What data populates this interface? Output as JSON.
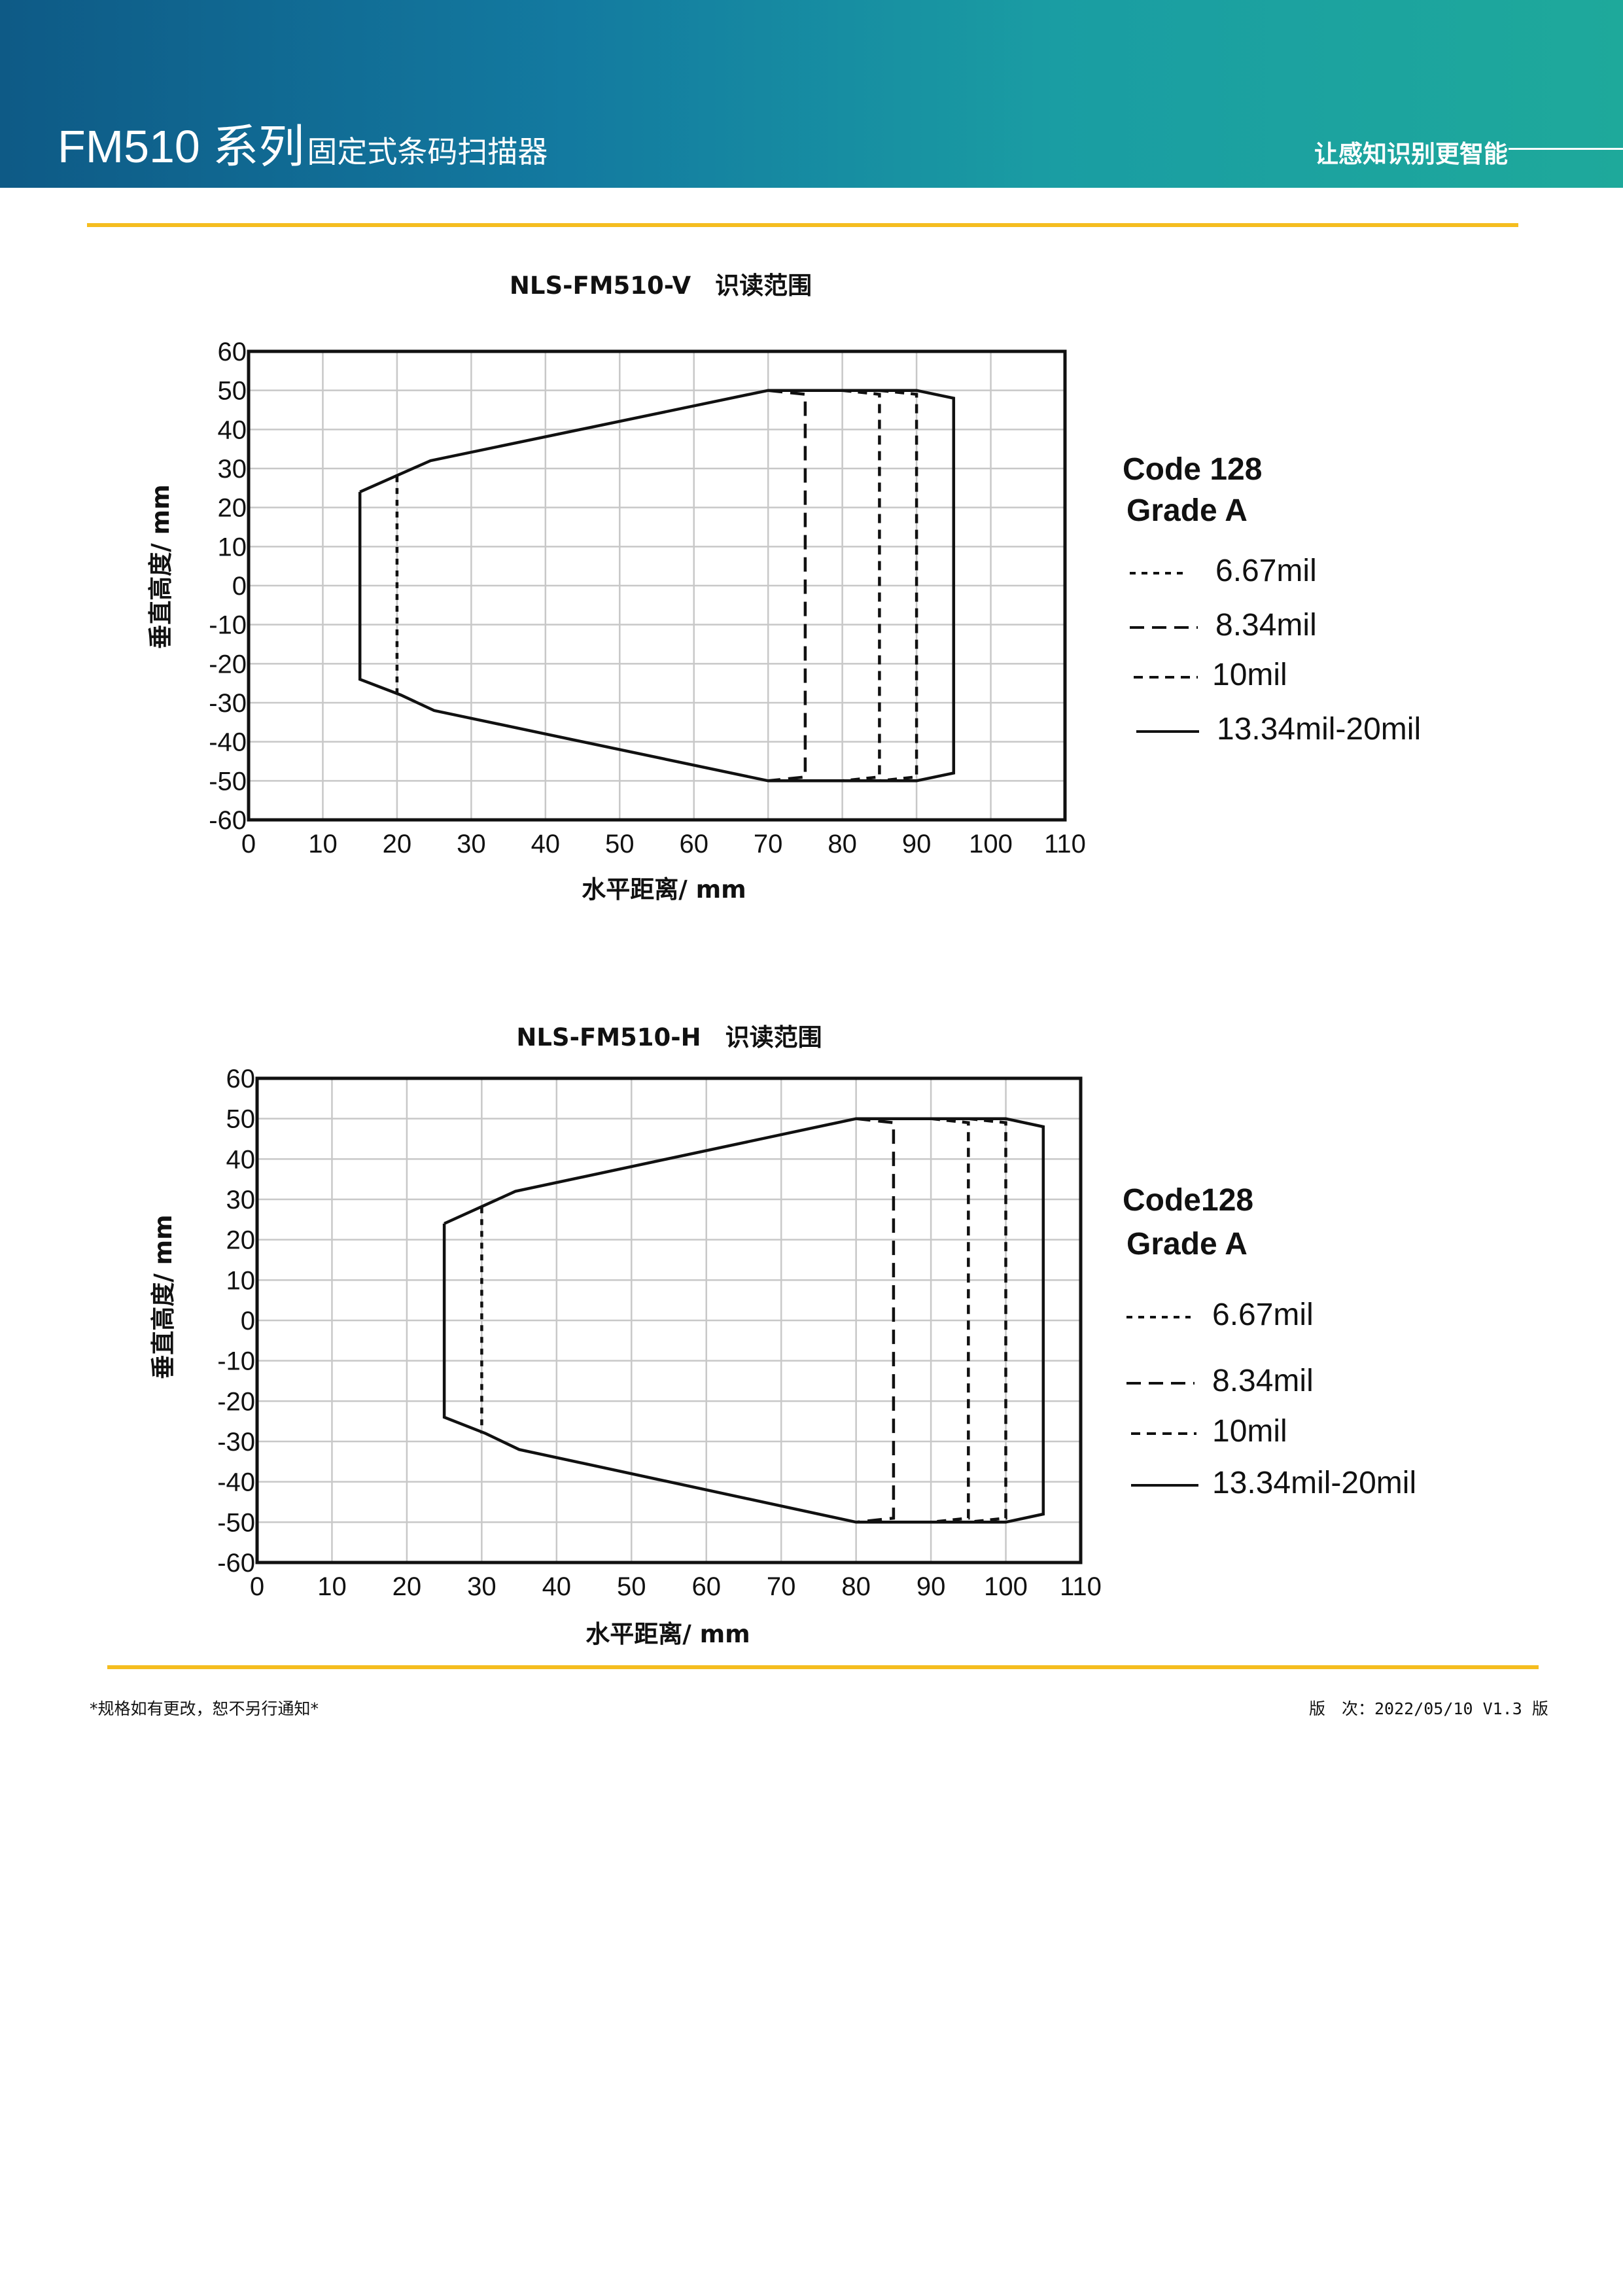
{
  "header": {
    "model": "FM510 系列",
    "product": "固定式条码扫描器",
    "slogan": "让感知识别更智能"
  },
  "footer": {
    "note": "*规格如有更改，恕不另行通知*",
    "version": "版　次：2022/05/10 V1.3 版"
  },
  "colors": {
    "header_start": "#0e5a86",
    "header_end": "#1ea99b",
    "rule": "#f5bd1f",
    "grid": "#c8c8c8",
    "line": "#111111"
  },
  "chart_data": [
    {
      "type": "line",
      "title": "NLS-FM510-V　识读范围",
      "xlabel": "水平距离/ mm",
      "ylabel": "垂直高度/ mm",
      "xlim": [
        0,
        110
      ],
      "ylim": [
        -60,
        60
      ],
      "xticks": [
        "0",
        "10",
        "20",
        "30",
        "40",
        "50",
        "60",
        "70",
        "80",
        "90",
        "100",
        "110"
      ],
      "yticks": [
        "60",
        "50",
        "40",
        "30",
        "20",
        "10",
        "0",
        "-10",
        "-20",
        "-30",
        "-40",
        "-50",
        "-60"
      ],
      "grid": true,
      "legend": {
        "heading": [
          "Code 128",
          "Grade A"
        ],
        "entries": [
          "6.67mil",
          "8.34mil",
          "10mil",
          "13.34mil-20mil"
        ]
      },
      "series": [
        {
          "name": "6.67mil",
          "style": "dash-a",
          "points": [
            [
              20,
              28
            ],
            [
              20,
              -28
            ]
          ]
        },
        {
          "name": "8.34mil",
          "style": "dash-b",
          "points": [
            [
              70,
              50
            ],
            [
              75,
              49
            ],
            [
              75,
              -49
            ],
            [
              70,
              -50
            ]
          ]
        },
        {
          "name": "10mil",
          "style": "dash-c",
          "points": [
            [
              80,
              50
            ],
            [
              85,
              49
            ],
            [
              85,
              -49
            ],
            [
              80,
              -50
            ]
          ]
        },
        {
          "name": "10mil",
          "style": "dash-c",
          "points": [
            [
              85,
              50
            ],
            [
              90,
              49
            ],
            [
              90,
              -49
            ],
            [
              85,
              -50
            ]
          ]
        },
        {
          "name": "13.34mil-20mil",
          "style": "solid",
          "points": [
            [
              15,
              24
            ],
            [
              24.5,
              32
            ],
            [
              70,
              50
            ],
            [
              90,
              50
            ],
            [
              95,
              48
            ],
            [
              95,
              -48
            ],
            [
              90,
              -50
            ],
            [
              70,
              -50
            ],
            [
              25,
              -32
            ],
            [
              20.5,
              -28
            ],
            [
              15,
              -24
            ],
            [
              15,
              24
            ]
          ]
        }
      ]
    },
    {
      "type": "line",
      "title": "NLS-FM510-H　识读范围",
      "xlabel": "水平距离/ mm",
      "ylabel": "垂直高度/ mm",
      "xlim": [
        0,
        110
      ],
      "ylim": [
        -60,
        60
      ],
      "xticks": [
        "0",
        "10",
        "20",
        "30",
        "40",
        "50",
        "60",
        "70",
        "80",
        "90",
        "100",
        "110"
      ],
      "yticks": [
        "60",
        "50",
        "40",
        "30",
        "20",
        "10",
        "0",
        "-10",
        "-20",
        "-30",
        "-40",
        "-50",
        "-60"
      ],
      "grid": true,
      "legend": {
        "heading": [
          "Code128",
          "Grade A"
        ],
        "entries": [
          "6.67mil",
          "8.34mil",
          "10mil",
          "13.34mil-20mil"
        ]
      },
      "series": [
        {
          "name": "6.67mil",
          "style": "dash-a",
          "points": [
            [
              30,
              28
            ],
            [
              30,
              -28
            ]
          ]
        },
        {
          "name": "8.34mil",
          "style": "dash-b",
          "points": [
            [
              80,
              50
            ],
            [
              85,
              49
            ],
            [
              85,
              -49
            ],
            [
              80,
              -50
            ]
          ]
        },
        {
          "name": "10mil",
          "style": "dash-c",
          "points": [
            [
              90,
              50
            ],
            [
              95,
              49
            ],
            [
              95,
              -49
            ],
            [
              90,
              -50
            ]
          ]
        },
        {
          "name": "10mil",
          "style": "dash-c",
          "points": [
            [
              95,
              50
            ],
            [
              100,
              49
            ],
            [
              100,
              -49
            ],
            [
              95,
              -50
            ]
          ]
        },
        {
          "name": "13.34mil-20mil",
          "style": "solid",
          "points": [
            [
              25,
              24
            ],
            [
              34.5,
              32
            ],
            [
              80,
              50
            ],
            [
              100,
              50
            ],
            [
              105,
              48
            ],
            [
              105,
              -48
            ],
            [
              100,
              -50
            ],
            [
              80,
              -50
            ],
            [
              35,
              -32
            ],
            [
              30.5,
              -28
            ],
            [
              25,
              -24
            ],
            [
              25,
              24
            ]
          ]
        }
      ]
    }
  ]
}
